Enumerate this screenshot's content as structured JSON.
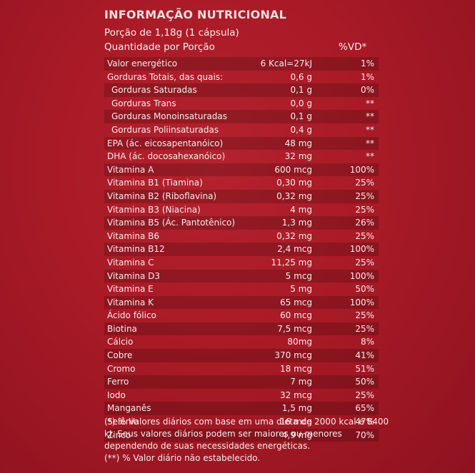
{
  "title": "INFORMAÇÃO NUTRICIONAL",
  "serving": "Porção de 1,18g (1 cápsula)",
  "header": {
    "quantity": "Quantidade por Porção",
    "vd": "%VD*"
  },
  "rows": [
    {
      "name": "Valor energético",
      "qty": "6 Kcal=27kJ",
      "vd": "1%"
    },
    {
      "name": "Gorduras Totais, das quais:",
      "qty": "0,6 g",
      "vd": "1%"
    },
    {
      "name": "Gorduras Saturadas",
      "qty": "0,1 g",
      "vd": "0%"
    },
    {
      "name": "Gorduras Trans",
      "qty": "0,0 g",
      "vd": "**"
    },
    {
      "name": "Gorduras Monoinsaturadas",
      "qty": "0,1 g",
      "vd": "**"
    },
    {
      "name": "Gorduras Poliinsaturadas",
      "qty": "0,4 g",
      "vd": "**"
    },
    {
      "name": "EPA (ác. eicosapentanóico)",
      "qty": "48 mg",
      "vd": "**"
    },
    {
      "name": "DHA  (ác. docosahexanóico)",
      "qty": "32 mg",
      "vd": "**"
    },
    {
      "name": "Vitamina A",
      "qty": "600 mcg",
      "vd": "100%"
    },
    {
      "name": "Vitamina B1 (Tiamina)",
      "qty": "0,30 mg",
      "vd": "25%"
    },
    {
      "name": "Vitamina B2 (Riboflavina)",
      "qty": "0,32 mg",
      "vd": "25%"
    },
    {
      "name": "Vitamina B3 (Niacina)",
      "qty": "4 mg",
      "vd": "25%"
    },
    {
      "name": "Vitamina B5 (Ác. Pantotênico)",
      "qty": "1,3 mg",
      "vd": "26%"
    },
    {
      "name": "Vitamina B6",
      "qty": "0,32 mg",
      "vd": "25%"
    },
    {
      "name": "Vitamina B12",
      "qty": "2,4 mcg",
      "vd": "100%"
    },
    {
      "name": "Vitamina C",
      "qty": "11,25 mg",
      "vd": "25%"
    },
    {
      "name": "Vitamina D3",
      "qty": "5 mcg",
      "vd": "100%"
    },
    {
      "name": "Vitamina E",
      "qty": "5 mg",
      "vd": "50%"
    },
    {
      "name": "Vitamina K",
      "qty": "65 mcg",
      "vd": "100%"
    },
    {
      "name": "Ácido fólico",
      "qty": "60 mcg",
      "vd": "25%"
    },
    {
      "name": "Biotina",
      "qty": "7,5 mcg",
      "vd": "25%"
    },
    {
      "name": "Cálcio",
      "qty": "80mg",
      "vd": "8%"
    },
    {
      "name": "Cobre",
      "qty": "370 mcg",
      "vd": "41%"
    },
    {
      "name": "Cromo",
      "qty": "18 mcg",
      "vd": "51%"
    },
    {
      "name": "Ferro",
      "qty": "7 mg",
      "vd": "50%"
    },
    {
      "name": "Iodo",
      "qty": "32 mcg",
      "vd": "25%"
    },
    {
      "name": "Manganês",
      "qty": "1,5 mg",
      "vd": "65%"
    },
    {
      "name": "Selênio",
      "qty": "16 mcg",
      "vd": "47%"
    },
    {
      "name": "Zinco",
      "qty": "4,9 mg",
      "vd": "70%"
    }
  ],
  "notes": [
    "(*) % Valores diários com base em uma dieta de 2000 kcal e 8400",
    "kJ. Seus valores diários podem ser maiores ou menores",
    "dependendo de suas necessidades energéticas.",
    "(**) % Valor diário não estabelecido."
  ]
}
